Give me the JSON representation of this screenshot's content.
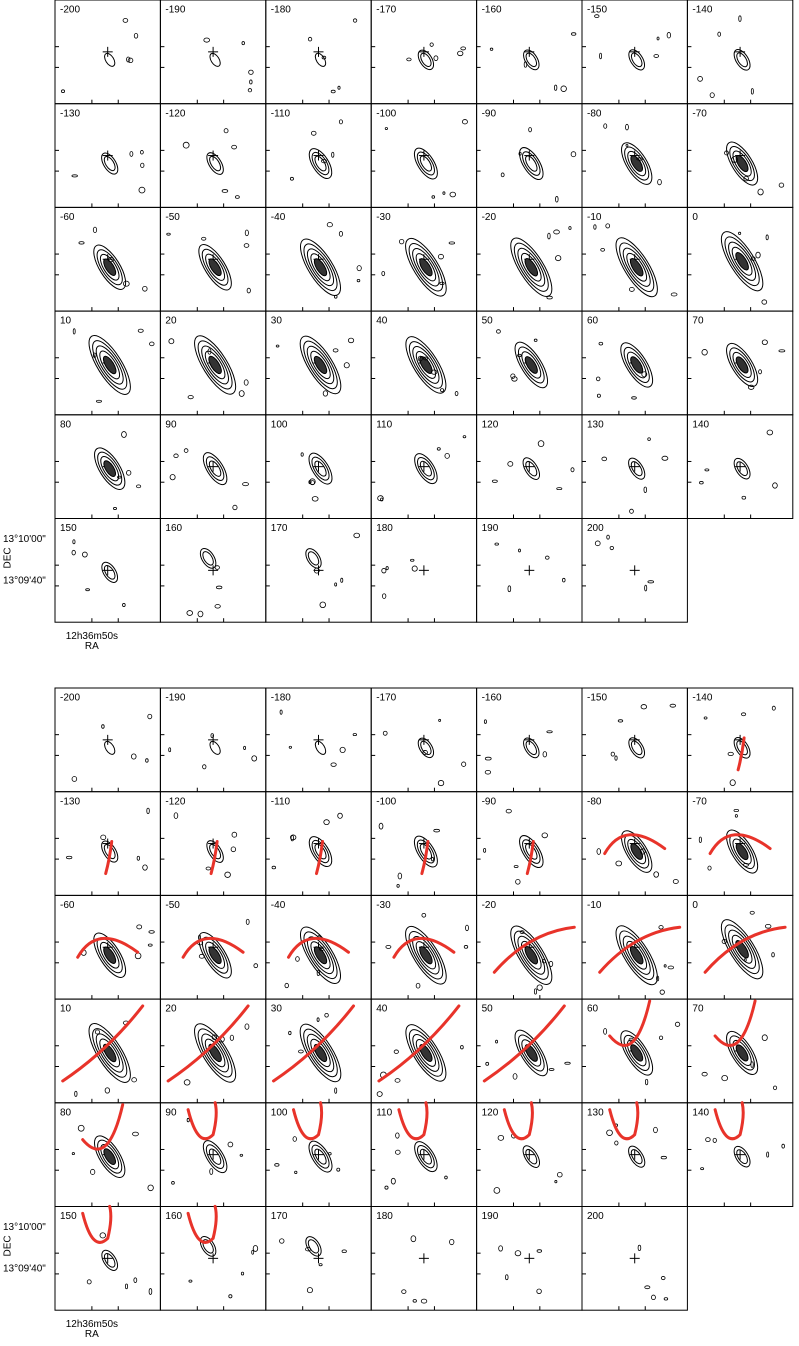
{
  "figures": [
    {
      "panels": [
        -200,
        -190,
        -180,
        -170,
        -160,
        -150,
        -140,
        -130,
        -120,
        -110,
        -100,
        -90,
        -80,
        -70,
        -60,
        -50,
        -40,
        -30,
        -20,
        -10,
        0,
        10,
        20,
        30,
        40,
        50,
        60,
        70,
        80,
        90,
        100,
        110,
        120,
        130,
        140,
        150,
        160,
        170,
        180,
        190,
        200
      ],
      "dec_labels": [
        "13°10'00\"",
        "13°09'40\""
      ],
      "dec_title": "DEC",
      "ra_label": "12h36m50s",
      "ra_title": "RA"
    },
    {
      "panels": [
        -200,
        -190,
        -180,
        -170,
        -160,
        -150,
        -140,
        -130,
        -120,
        -110,
        -100,
        -90,
        -80,
        -70,
        -60,
        -50,
        -40,
        -30,
        -20,
        -10,
        0,
        10,
        20,
        30,
        40,
        50,
        60,
        70,
        80,
        90,
        100,
        110,
        120,
        130,
        140,
        150,
        160,
        170,
        180,
        190,
        200
      ],
      "dec_labels": [
        "13°10'00\"",
        "13°09'40\""
      ],
      "dec_title": "DEC",
      "ra_label": "12h36m50s",
      "ra_title": "RA"
    }
  ]
}
